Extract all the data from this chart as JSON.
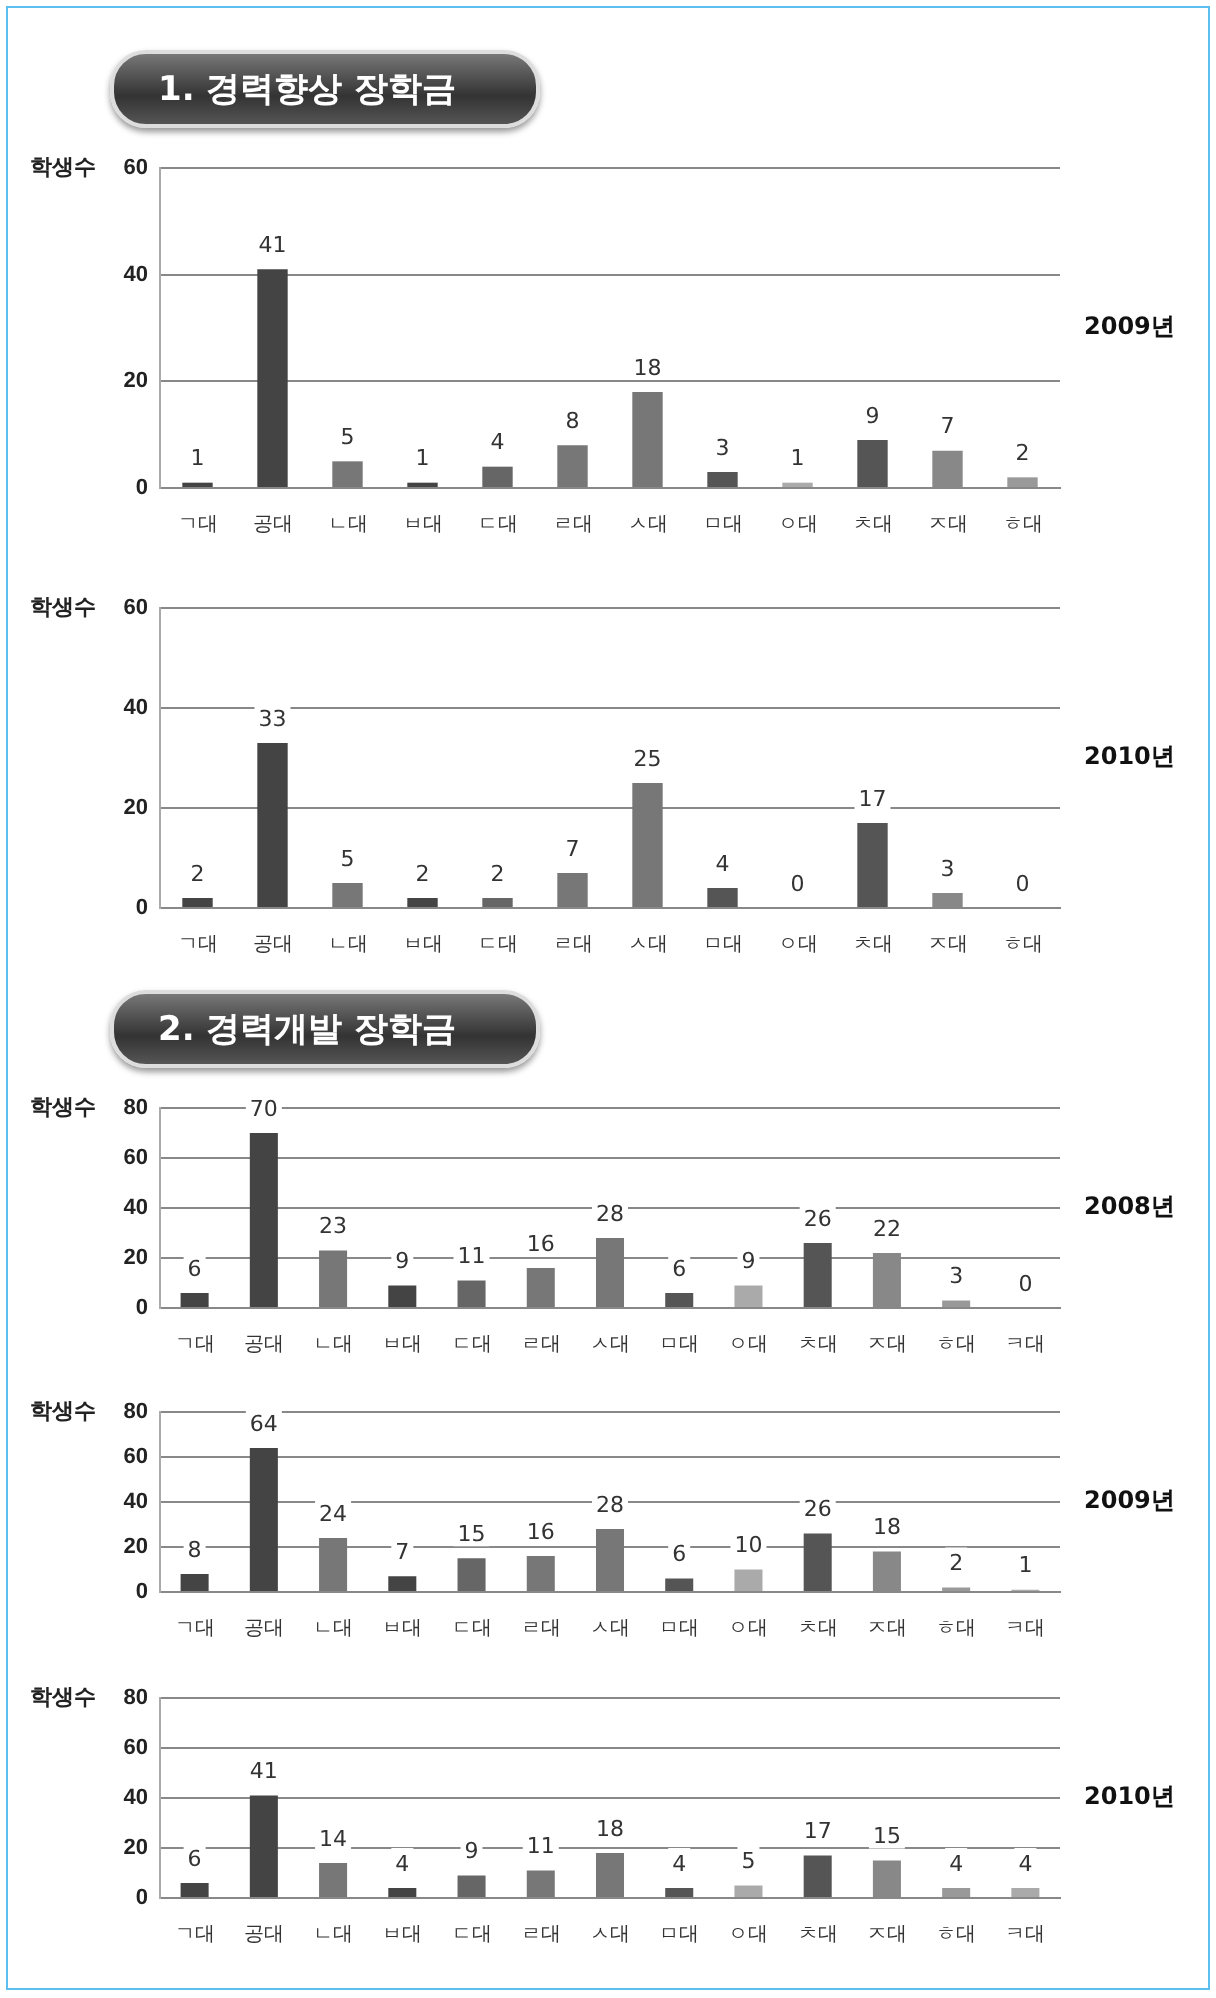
{
  "chart_data": [
    {
      "type": "bar",
      "title": "1. 경력향상 장학금",
      "ylabel": "학생수",
      "categories": [
        "ㄱ대",
        "공대",
        "ㄴ대",
        "ㅂ대",
        "ㄷ대",
        "ㄹ대",
        "ㅅ대",
        "ㅁ대",
        "ㅇ대",
        "ㅊ대",
        "ㅈ대",
        "ㅎ대"
      ],
      "values": [
        1,
        41,
        5,
        1,
        4,
        8,
        18,
        3,
        1,
        9,
        7,
        2
      ],
      "colors": [
        "#444444",
        "#444444",
        "#777777",
        "#444444",
        "#666666",
        "#777777",
        "#777777",
        "#555555",
        "#aaaaaa",
        "#555555",
        "#888888",
        "#999999"
      ],
      "ylim": [
        0,
        60
      ],
      "yticks": [
        0,
        20,
        40,
        60
      ],
      "grid": "y",
      "data_labels": true,
      "annotations": [
        "2009년"
      ]
    },
    {
      "type": "bar",
      "ylabel": "학생수",
      "categories": [
        "ㄱ대",
        "공대",
        "ㄴ대",
        "ㅂ대",
        "ㄷ대",
        "ㄹ대",
        "ㅅ대",
        "ㅁ대",
        "ㅇ대",
        "ㅊ대",
        "ㅈ대",
        "ㅎ대"
      ],
      "values": [
        2,
        33,
        5,
        2,
        2,
        7,
        25,
        4,
        0,
        17,
        3,
        0
      ],
      "colors": [
        "#444444",
        "#444444",
        "#777777",
        "#444444",
        "#666666",
        "#777777",
        "#777777",
        "#555555",
        "#aaaaaa",
        "#555555",
        "#888888",
        "#999999"
      ],
      "ylim": [
        0,
        60
      ],
      "yticks": [
        0,
        20,
        40,
        60
      ],
      "grid": "y",
      "data_labels": true,
      "annotations": [
        "2010년"
      ]
    },
    {
      "type": "bar",
      "title": "2. 경력개발 장학금",
      "ylabel": "학생수",
      "categories": [
        "ㄱ대",
        "공대",
        "ㄴ대",
        "ㅂ대",
        "ㄷ대",
        "ㄹ대",
        "ㅅ대",
        "ㅁ대",
        "ㅇ대",
        "ㅊ대",
        "ㅈ대",
        "ㅎ대",
        "ㅋ대"
      ],
      "values": [
        6,
        70,
        23,
        9,
        11,
        16,
        28,
        6,
        9,
        26,
        22,
        3,
        0
      ],
      "colors": [
        "#444444",
        "#444444",
        "#777777",
        "#444444",
        "#666666",
        "#777777",
        "#777777",
        "#555555",
        "#aaaaaa",
        "#555555",
        "#888888",
        "#999999",
        "#aaaaaa"
      ],
      "ylim": [
        0,
        80
      ],
      "yticks": [
        0,
        20,
        40,
        60,
        80
      ],
      "grid": "y",
      "data_labels": true,
      "annotations": [
        "2008년"
      ]
    },
    {
      "type": "bar",
      "ylabel": "학생수",
      "categories": [
        "ㄱ대",
        "공대",
        "ㄴ대",
        "ㅂ대",
        "ㄷ대",
        "ㄹ대",
        "ㅅ대",
        "ㅁ대",
        "ㅇ대",
        "ㅊ대",
        "ㅈ대",
        "ㅎ대",
        "ㅋ대"
      ],
      "values": [
        8,
        64,
        24,
        7,
        15,
        16,
        28,
        6,
        10,
        26,
        18,
        2,
        1
      ],
      "colors": [
        "#444444",
        "#444444",
        "#777777",
        "#444444",
        "#666666",
        "#777777",
        "#777777",
        "#555555",
        "#aaaaaa",
        "#555555",
        "#888888",
        "#999999",
        "#aaaaaa"
      ],
      "ylim": [
        0,
        80
      ],
      "yticks": [
        0,
        20,
        40,
        60,
        80
      ],
      "grid": "y",
      "data_labels": true,
      "annotations": [
        "2009년"
      ]
    },
    {
      "type": "bar",
      "ylabel": "학생수",
      "categories": [
        "ㄱ대",
        "공대",
        "ㄴ대",
        "ㅂ대",
        "ㄷ대",
        "ㄹ대",
        "ㅅ대",
        "ㅁ대",
        "ㅇ대",
        "ㅊ대",
        "ㅈ대",
        "ㅎ대",
        "ㅋ대"
      ],
      "values": [
        6,
        41,
        14,
        4,
        9,
        11,
        18,
        4,
        5,
        17,
        15,
        4,
        4
      ],
      "colors": [
        "#444444",
        "#444444",
        "#777777",
        "#444444",
        "#666666",
        "#777777",
        "#777777",
        "#555555",
        "#aaaaaa",
        "#555555",
        "#888888",
        "#999999",
        "#aaaaaa"
      ],
      "ylim": [
        0,
        80
      ],
      "yticks": [
        0,
        20,
        40,
        60,
        80
      ],
      "grid": "y",
      "data_labels": true,
      "annotations": [
        "2010년"
      ]
    }
  ]
}
